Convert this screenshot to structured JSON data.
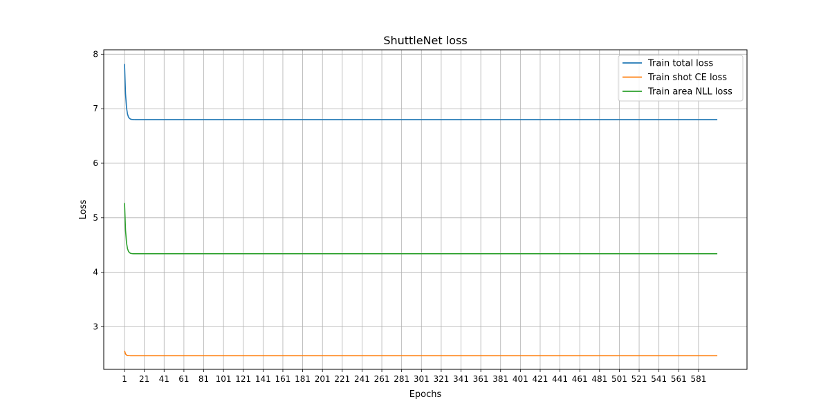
{
  "chart_data": {
    "type": "line",
    "title": "ShuttleNet loss",
    "xlabel": "Epochs",
    "ylabel": "Loss",
    "xlim": [
      -20,
      630
    ],
    "ylim": [
      2.22,
      8.08
    ],
    "x_ticks": [
      1,
      21,
      41,
      61,
      81,
      101,
      121,
      141,
      161,
      181,
      201,
      221,
      241,
      261,
      281,
      301,
      321,
      341,
      361,
      381,
      401,
      421,
      441,
      461,
      481,
      501,
      521,
      541,
      561,
      581
    ],
    "y_ticks": [
      3,
      4,
      5,
      6,
      7,
      8
    ],
    "grid": true,
    "legend_position": "top-right",
    "epochs": 600,
    "series": [
      {
        "name": "Train total loss",
        "color": "#1f77b4",
        "start": 7.82,
        "plateau": 6.8,
        "tau": 1.3
      },
      {
        "name": "Train shot CE loss",
        "color": "#ff7f0e",
        "start": 2.56,
        "plateau": 2.47,
        "tau": 1.0
      },
      {
        "name": "Train area NLL loss",
        "color": "#2ca02c",
        "start": 5.27,
        "plateau": 4.34,
        "tau": 1.3
      }
    ]
  }
}
